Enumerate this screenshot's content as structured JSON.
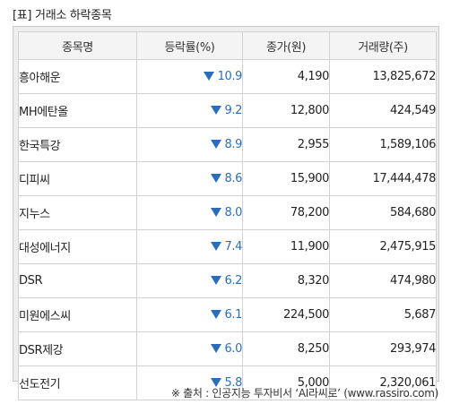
{
  "title": "[표] 거래소 하락종목",
  "colors": {
    "down_blue": "#2a6ebb",
    "header_bg": "#f4f4f4",
    "panel_bg": "#eeeeee",
    "border": "#d2d2d2"
  },
  "table": {
    "headers": {
      "name": "종목명",
      "rate": "등락률(%)",
      "price": "종가(원)",
      "volume": "거래량(주)"
    },
    "rows": [
      {
        "name": "흥아해운",
        "direction_icon": "down-triangle-icon",
        "rate": "10.9",
        "price": "4,190",
        "volume": "13,825,672"
      },
      {
        "name": "MH에탄올",
        "direction_icon": "down-triangle-icon",
        "rate": "9.2",
        "price": "12,800",
        "volume": "424,549"
      },
      {
        "name": "한국특강",
        "direction_icon": "down-triangle-icon",
        "rate": "8.9",
        "price": "2,955",
        "volume": "1,589,106"
      },
      {
        "name": "디피씨",
        "direction_icon": "down-triangle-icon",
        "rate": "8.6",
        "price": "15,900",
        "volume": "17,444,478"
      },
      {
        "name": "지누스",
        "direction_icon": "down-triangle-icon",
        "rate": "8.0",
        "price": "78,200",
        "volume": "584,680"
      },
      {
        "name": "대성에너지",
        "direction_icon": "down-triangle-icon",
        "rate": "7.4",
        "price": "11,900",
        "volume": "2,475,915"
      },
      {
        "name": "DSR",
        "direction_icon": "down-triangle-icon",
        "rate": "6.2",
        "price": "8,320",
        "volume": "474,980"
      },
      {
        "name": "미원에스씨",
        "direction_icon": "down-triangle-icon",
        "rate": "6.1",
        "price": "224,500",
        "volume": "5,687"
      },
      {
        "name": "DSR제강",
        "direction_icon": "down-triangle-icon",
        "rate": "6.0",
        "price": "8,250",
        "volume": "293,974"
      },
      {
        "name": "선도전기",
        "direction_icon": "down-triangle-icon",
        "rate": "5.8",
        "price": "5,000",
        "volume": "2,320,061"
      }
    ]
  },
  "footer": "※ 출처 : 인공지능 투자비서 ‘AI라씨로’ (www.rassiro.com)"
}
